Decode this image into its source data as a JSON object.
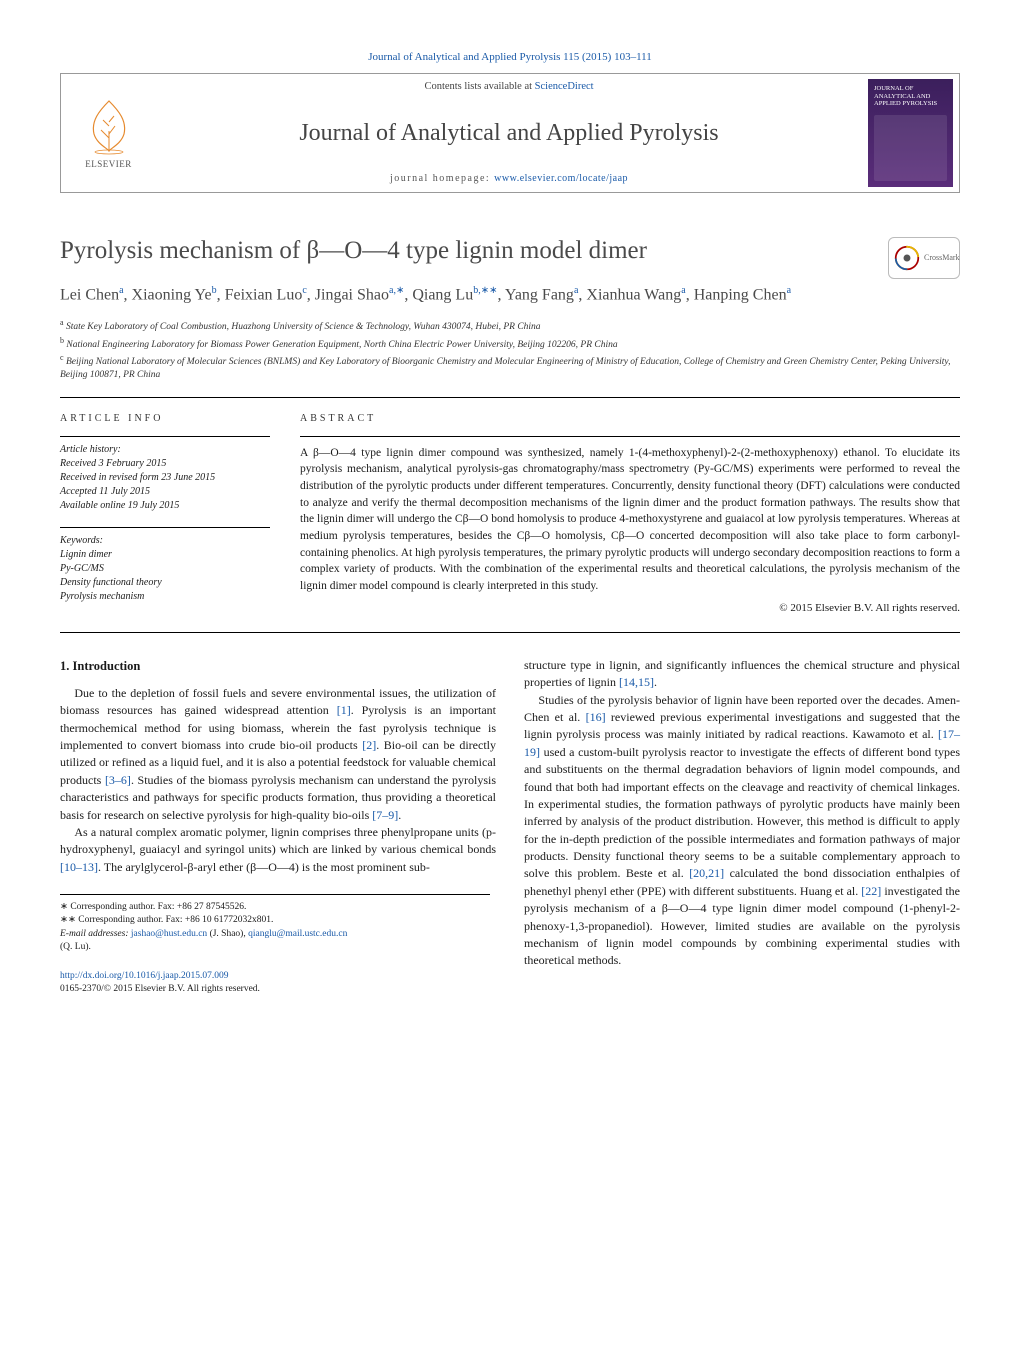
{
  "top_citation": "Journal of Analytical and Applied Pyrolysis 115 (2015) 103–111",
  "header": {
    "contents_prefix": "Contents lists available at ",
    "contents_link": "ScienceDirect",
    "journal_name": "Journal of Analytical and Applied Pyrolysis",
    "homepage_prefix": "journal homepage: ",
    "homepage_url": "www.elsevier.com/locate/jaap",
    "elsevier_label": "ELSEVIER",
    "cover_title": "Journal of Analytical and Applied Pyrolysis"
  },
  "crossmark_label": "CrossMark",
  "title": "Pyrolysis mechanism of β—O—4 type lignin model dimer",
  "authors_html": "Lei Chen<sup>a</sup>, Xiaoning Ye<sup>b</sup>, Feixian Luo<sup>c</sup>, Jingai Shao<sup>a,∗</sup>, Qiang Lu<sup>b,∗∗</sup>, Yang Fang<sup>a</sup>, Xianhua Wang<sup>a</sup>, Hanping Chen<sup>a</sup>",
  "affiliations": [
    "a State Key Laboratory of Coal Combustion, Huazhong University of Science & Technology, Wuhan 430074, Hubei, PR China",
    "b National Engineering Laboratory for Biomass Power Generation Equipment, North China Electric Power University, Beijing 102206, PR China",
    "c Beijing National Laboratory of Molecular Sciences (BNLMS) and Key Laboratory of Bioorganic Chemistry and Molecular Engineering of Ministry of Education, College of Chemistry and Green Chemistry Center, Peking University, Beijing 100871, PR China"
  ],
  "article_info": {
    "header": "ARTICLE INFO",
    "history_label": "Article history:",
    "history": [
      "Received 3 February 2015",
      "Received in revised form 23 June 2015",
      "Accepted 11 July 2015",
      "Available online 19 July 2015"
    ],
    "keywords_label": "Keywords:",
    "keywords": [
      "Lignin dimer",
      "Py-GC/MS",
      "Density functional theory",
      "Pyrolysis mechanism"
    ]
  },
  "abstract": {
    "header": "ABSTRACT",
    "text": "A β—O—4 type lignin dimer compound was synthesized, namely 1-(4-methoxyphenyl)-2-(2-methoxyphenoxy) ethanol. To elucidate its pyrolysis mechanism, analytical pyrolysis-gas chromatography/mass spectrometry (Py-GC/MS) experiments were performed to reveal the distribution of the pyrolytic products under different temperatures. Concurrently, density functional theory (DFT) calculations were conducted to analyze and verify the thermal decomposition mechanisms of the lignin dimer and the product formation pathways. The results show that the lignin dimer will undergo the Cβ—O bond homolysis to produce 4-methoxystyrene and guaiacol at low pyrolysis temperatures. Whereas at medium pyrolysis temperatures, besides the Cβ—O homolysis, Cβ—O concerted decomposition will also take place to form carbonyl-containing phenolics. At high pyrolysis temperatures, the primary pyrolytic products will undergo secondary decomposition reactions to form a complex variety of products. With the combination of the experimental results and theoretical calculations, the pyrolysis mechanism of the lignin dimer model compound is clearly interpreted in this study.",
    "copyright": "© 2015 Elsevier B.V. All rights reserved."
  },
  "body": {
    "intro_heading": "1. Introduction",
    "p1": "Due to the depletion of fossil fuels and severe environmental issues, the utilization of biomass resources has gained widespread attention [1]. Pyrolysis is an important thermochemical method for using biomass, wherein the fast pyrolysis technique is implemented to convert biomass into crude bio-oil products [2]. Bio-oil can be directly utilized or refined as a liquid fuel, and it is also a potential feedstock for valuable chemical products [3–6]. Studies of the biomass pyrolysis mechanism can understand the pyrolysis characteristics and pathways for specific products formation, thus providing a theoretical basis for research on selective pyrolysis for high-quality bio-oils [7–9].",
    "p2": "As a natural complex aromatic polymer, lignin comprises three phenylpropane units (p-hydroxyphenyl, guaiacyl and syringol units) which are linked by various chemical bonds [10–13]. The arylglycerol-β-aryl ether (β—O—4) is the most prominent sub-",
    "p3_pre": "structure type in lignin, and significantly influences the chemical structure and physical properties of lignin ",
    "p3_ref": "[14,15]",
    "p3_post": ".",
    "p4": "Studies of the pyrolysis behavior of lignin have been reported over the decades. Amen-Chen et al. [16] reviewed previous experimental investigations and suggested that the lignin pyrolysis process was mainly initiated by radical reactions. Kawamoto et al. [17–19] used a custom-built pyrolysis reactor to investigate the effects of different bond types and substituents on the thermal degradation behaviors of lignin model compounds, and found that both had important effects on the cleavage and reactivity of chemical linkages. In experimental studies, the formation pathways of pyrolytic products have mainly been inferred by analysis of the product distribution. However, this method is difficult to apply for the in-depth prediction of the possible intermediates and formation pathways of major products. Density functional theory seems to be a suitable complementary approach to solve this problem. Beste et al. [20,21] calculated the bond dissociation enthalpies of phenethyl phenyl ether (PPE) with different substituents. Huang et al. [22] investigated the pyrolysis mechanism of a β—O—4 type lignin dimer model compound (1-phenyl-2-phenoxy-1,3-propanediol). However, limited studies are available on the pyrolysis mechanism of lignin model compounds by combining experimental studies with theoretical methods."
  },
  "footnotes": {
    "corr1": "∗ Corresponding author. Fax: +86 27 87545526.",
    "corr2": "∗∗ Corresponding author. Fax: +86 10 61772032x801.",
    "email_label": "E-mail addresses: ",
    "email1": "jashao@hust.edu.cn",
    "email1_who": " (J. Shao), ",
    "email2": "qianglu@mail.ustc.edu.cn",
    "email2_who": " (Q. Lu)."
  },
  "doi": {
    "url": "http://dx.doi.org/10.1016/j.jaap.2015.07.009",
    "issn_line": "0165-2370/© 2015 Elsevier B.V. All rights reserved."
  },
  "colors": {
    "link": "#1a5aa8",
    "text": "#1a1a1a",
    "heading_gray": "#4a4a4a",
    "rule": "#000000",
    "cover_bg_top": "#3b1f5c",
    "cover_bg_bottom": "#5a2d7a"
  }
}
